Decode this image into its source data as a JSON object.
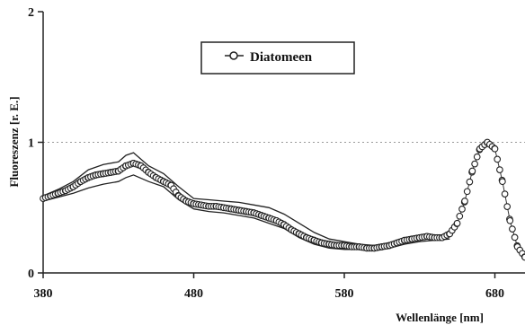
{
  "chart_data": {
    "type": "line",
    "title": "",
    "xlabel": "Wellenlänge  [nm]",
    "ylabel": "Fluoreszenz  [r. E.]",
    "xlim": [
      380,
      700
    ],
    "ylim": [
      0,
      2
    ],
    "x_ticks": [
      380,
      480,
      580,
      680
    ],
    "x_tick_labels": [
      "380",
      "480",
      "580",
      "680"
    ],
    "y_ticks": [
      0,
      1,
      2
    ],
    "y_tick_labels": [
      "0",
      "1",
      "2"
    ],
    "grid": "horizontal dotted line at 1",
    "legend_position": "top-center",
    "series": [
      {
        "name": "Diatomeen",
        "marker": "open-circle",
        "color": "#222222",
        "x": [
          380,
          385,
          390,
          395,
          400,
          405,
          410,
          415,
          420,
          425,
          430,
          435,
          440,
          445,
          450,
          455,
          460,
          465,
          470,
          475,
          480,
          485,
          490,
          495,
          500,
          505,
          510,
          515,
          520,
          525,
          530,
          535,
          540,
          545,
          550,
          555,
          560,
          565,
          570,
          575,
          580,
          585,
          590,
          595,
          600,
          605,
          610,
          615,
          620,
          625,
          630,
          635,
          640,
          645,
          650,
          655,
          660,
          665,
          670,
          675,
          680,
          685,
          690,
          695,
          700
        ],
        "values": [
          0.57,
          0.59,
          0.61,
          0.63,
          0.66,
          0.7,
          0.73,
          0.75,
          0.76,
          0.77,
          0.78,
          0.82,
          0.84,
          0.82,
          0.77,
          0.73,
          0.7,
          0.67,
          0.59,
          0.55,
          0.53,
          0.52,
          0.51,
          0.51,
          0.5,
          0.49,
          0.48,
          0.47,
          0.46,
          0.44,
          0.42,
          0.4,
          0.37,
          0.33,
          0.3,
          0.27,
          0.25,
          0.23,
          0.22,
          0.21,
          0.21,
          0.2,
          0.2,
          0.19,
          0.19,
          0.2,
          0.21,
          0.23,
          0.25,
          0.26,
          0.27,
          0.28,
          0.27,
          0.27,
          0.3,
          0.38,
          0.55,
          0.78,
          0.95,
          1.0,
          0.95,
          0.7,
          0.4,
          0.2,
          0.12
        ]
      }
    ],
    "envelope": {
      "x": [
        380,
        390,
        400,
        410,
        420,
        430,
        435,
        440,
        450,
        460,
        470,
        480,
        490,
        500,
        510,
        520,
        530,
        540,
        550,
        560,
        570,
        580,
        590,
        600,
        610,
        620,
        630,
        640,
        650
      ],
      "upper": [
        0.59,
        0.64,
        0.7,
        0.79,
        0.83,
        0.85,
        0.9,
        0.92,
        0.82,
        0.76,
        0.66,
        0.57,
        0.56,
        0.55,
        0.54,
        0.52,
        0.5,
        0.45,
        0.38,
        0.31,
        0.26,
        0.24,
        0.22,
        0.21,
        0.23,
        0.26,
        0.28,
        0.29,
        0.29
      ],
      "lower": [
        0.55,
        0.58,
        0.61,
        0.65,
        0.68,
        0.7,
        0.73,
        0.75,
        0.7,
        0.66,
        0.56,
        0.49,
        0.47,
        0.46,
        0.44,
        0.42,
        0.38,
        0.34,
        0.27,
        0.22,
        0.19,
        0.18,
        0.18,
        0.18,
        0.19,
        0.22,
        0.24,
        0.25,
        0.26
      ]
    }
  }
}
